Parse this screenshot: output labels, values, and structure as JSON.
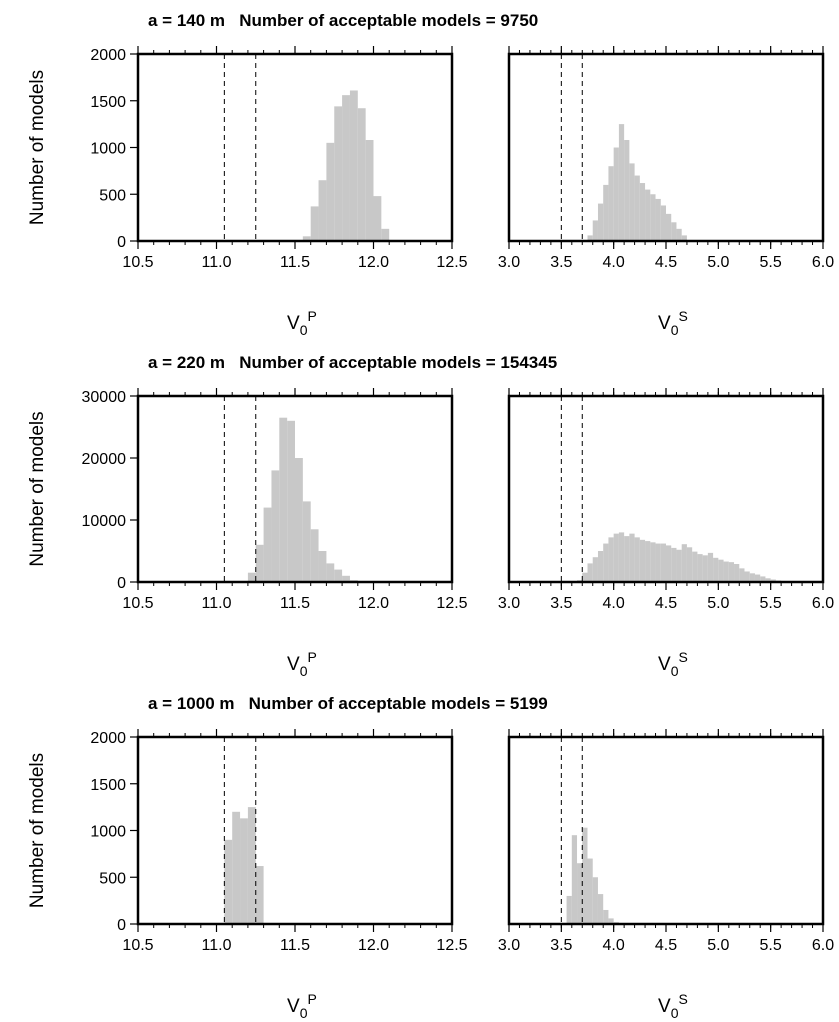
{
  "chart_data": [
    {
      "type": "histogram",
      "title": "a = 140 m   Number of acceptable models = 9750",
      "ylabel": "Number of models",
      "xlabel": "V",
      "xlabel_sub": "0",
      "xlabel_sup": "P",
      "color": "#c8c8c8",
      "xlim": [
        10.5,
        12.5
      ],
      "xticks": [
        10.5,
        {
          "value": 11,
          "label": "11.0"
        },
        11.5,
        {
          "value": 12,
          "label": "12.0"
        },
        12.5
      ],
      "ylim": [
        0,
        2000
      ],
      "yticks": [
        0,
        500,
        1000,
        1500,
        2000
      ],
      "vlines": [
        11.05,
        11.25
      ],
      "bins": [
        11.55,
        11.6,
        11.65,
        11.7,
        11.75,
        11.8,
        11.85,
        11.9,
        11.95,
        12.0,
        12.05,
        12.1
      ],
      "values": [
        50,
        370,
        650,
        1050,
        1440,
        1560,
        1610,
        1420,
        1080,
        480,
        130
      ]
    },
    {
      "type": "histogram",
      "xlabel": "V",
      "xlabel_sub": "0",
      "xlabel_sup": "S",
      "color": "#c8c8c8",
      "xlim": [
        3,
        6
      ],
      "xticks": [
        {
          "value": 3,
          "label": "3.0"
        },
        3.5,
        {
          "value": 4,
          "label": "4.0"
        },
        4.5,
        {
          "value": 5,
          "label": "5.0"
        },
        5.5,
        {
          "value": 6,
          "label": "6.0"
        }
      ],
      "ylim": [
        0,
        2000
      ],
      "vlines": [
        3.5,
        3.7
      ],
      "bins": [
        3.75,
        3.8,
        3.85,
        3.9,
        3.95,
        4.0,
        4.05,
        4.1,
        4.15,
        4.2,
        4.25,
        4.3,
        4.35,
        4.4,
        4.45,
        4.5,
        4.55,
        4.6,
        4.65,
        4.7
      ],
      "values": [
        60,
        220,
        400,
        600,
        800,
        1000,
        1250,
        1080,
        830,
        700,
        620,
        550,
        500,
        450,
        380,
        290,
        200,
        130,
        60
      ]
    },
    {
      "type": "histogram",
      "title": "a = 220 m   Number of acceptable models = 154345",
      "ylabel": "Number of models",
      "xlabel": "V",
      "xlabel_sub": "0",
      "xlabel_sup": "P",
      "color": "#c8c8c8",
      "xlim": [
        10.5,
        12.5
      ],
      "xticks": [
        10.5,
        {
          "value": 11,
          "label": "11.0"
        },
        11.5,
        {
          "value": 12,
          "label": "12.0"
        },
        12.5
      ],
      "ylim": [
        0,
        30000
      ],
      "yticks": [
        0,
        10000,
        20000,
        30000
      ],
      "vlines": [
        11.05,
        11.25
      ],
      "bins": [
        11.2,
        11.25,
        11.3,
        11.35,
        11.4,
        11.45,
        11.5,
        11.55,
        11.6,
        11.65,
        11.7,
        11.75,
        11.8,
        11.85,
        11.9
      ],
      "values": [
        1500,
        6000,
        12000,
        18000,
        26500,
        26000,
        20000,
        13000,
        8500,
        5000,
        3000,
        2000,
        1000,
        300
      ]
    },
    {
      "type": "histogram",
      "xlabel": "V",
      "xlabel_sub": "0",
      "xlabel_sup": "S",
      "color": "#c8c8c8",
      "xlim": [
        3,
        6
      ],
      "xticks": [
        {
          "value": 3,
          "label": "3.0"
        },
        3.5,
        {
          "value": 4,
          "label": "4.0"
        },
        4.5,
        {
          "value": 5,
          "label": "5.0"
        },
        5.5,
        {
          "value": 6,
          "label": "6.0"
        }
      ],
      "ylim": [
        0,
        30000
      ],
      "vlines": [
        3.5,
        3.7
      ],
      "bins": [
        3.65,
        3.7,
        3.75,
        3.8,
        3.85,
        3.9,
        3.95,
        4.0,
        4.05,
        4.1,
        4.15,
        4.2,
        4.25,
        4.3,
        4.35,
        4.4,
        4.45,
        4.5,
        4.55,
        4.6,
        4.65,
        4.7,
        4.75,
        4.8,
        4.85,
        4.9,
        4.95,
        5.0,
        5.05,
        5.1,
        5.15,
        5.2,
        5.25,
        5.3,
        5.35,
        5.4,
        5.45,
        5.5,
        5.55,
        5.6,
        5.65,
        5.7
      ],
      "values": [
        300,
        1500,
        3000,
        4000,
        5000,
        6200,
        7200,
        7800,
        8000,
        7400,
        7800,
        7200,
        6800,
        6600,
        6400,
        6200,
        6200,
        5900,
        5500,
        5200,
        6100,
        5600,
        4900,
        4500,
        4300,
        4700,
        3900,
        3600,
        3300,
        3200,
        2900,
        2200,
        1700,
        1400,
        1200,
        900,
        600,
        400,
        250,
        120,
        50
      ]
    },
    {
      "type": "histogram",
      "title": "a = 1000 m   Number of acceptable models = 5199",
      "ylabel": "Number of models",
      "xlabel": "V",
      "xlabel_sub": "0",
      "xlabel_sup": "P",
      "color": "#c8c8c8",
      "xlim": [
        10.5,
        12.5
      ],
      "xticks": [
        10.5,
        {
          "value": 11,
          "label": "11.0"
        },
        11.5,
        {
          "value": 12,
          "label": "12.0"
        },
        12.5
      ],
      "ylim": [
        0,
        2000
      ],
      "yticks": [
        0,
        500,
        1000,
        1500,
        2000
      ],
      "vlines": [
        11.05,
        11.25
      ],
      "bins": [
        11.05,
        11.1,
        11.15,
        11.2,
        11.25,
        11.3
      ],
      "values": [
        900,
        1200,
        1130,
        1250,
        620
      ]
    },
    {
      "type": "histogram",
      "xlabel": "V",
      "xlabel_sub": "0",
      "xlabel_sup": "S",
      "color": "#c8c8c8",
      "xlim": [
        3,
        6
      ],
      "xticks": [
        {
          "value": 3,
          "label": "3.0"
        },
        3.5,
        {
          "value": 4,
          "label": "4.0"
        },
        4.5,
        {
          "value": 5,
          "label": "5.0"
        },
        5.5,
        {
          "value": 6,
          "label": "6.0"
        }
      ],
      "ylim": [
        0,
        2000
      ],
      "vlines": [
        3.5,
        3.7
      ],
      "bins": [
        3.55,
        3.6,
        3.65,
        3.7,
        3.75,
        3.8,
        3.85,
        3.9,
        3.95,
        4.0,
        4.05
      ],
      "values": [
        300,
        950,
        650,
        1030,
        700,
        500,
        320,
        150,
        60,
        20
      ]
    }
  ]
}
